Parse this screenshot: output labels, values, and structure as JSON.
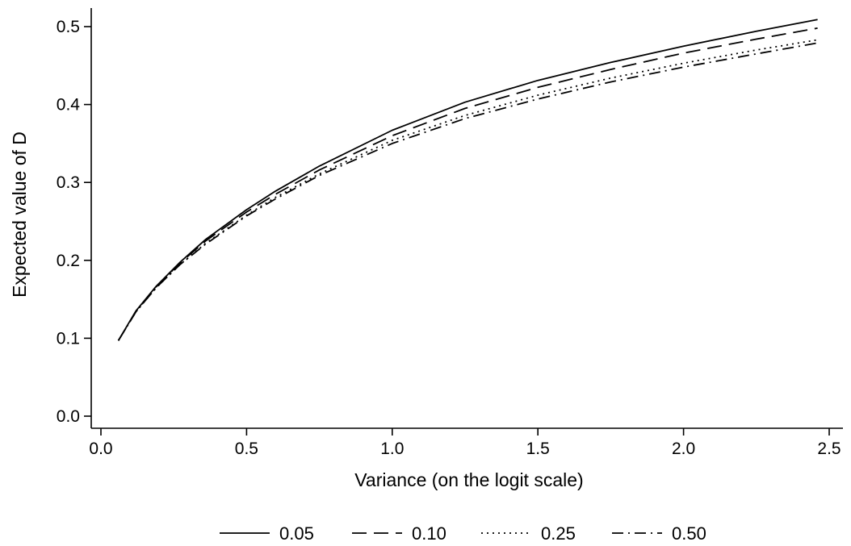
{
  "chart_data": {
    "type": "line",
    "title": "",
    "xlabel": "Variance (on the logit scale)",
    "ylabel": "Expected value of D",
    "xlim": [
      0.0,
      2.5
    ],
    "ylim": [
      0.0,
      0.5
    ],
    "xticks": [
      0.0,
      0.5,
      1.0,
      1.5,
      2.0,
      2.5
    ],
    "xtick_labels": [
      "0.0",
      "0.5",
      "1.0",
      "1.5",
      "2.0",
      "2.5"
    ],
    "yticks": [
      0.0,
      0.1,
      0.2,
      0.3,
      0.4,
      0.5
    ],
    "ytick_labels": [
      "0.0",
      "0.1",
      "0.2",
      "0.3",
      "0.4",
      "0.5"
    ],
    "grid": false,
    "legend_position": "bottom",
    "x": [
      0.06,
      0.12,
      0.19,
      0.27,
      0.36,
      0.5,
      0.6,
      0.75,
      1.0,
      1.25,
      1.5,
      1.75,
      2.0,
      2.25,
      2.46
    ],
    "series": [
      {
        "name": "0.05",
        "dash": "solid",
        "values": [
          0.097,
          0.135,
          0.167,
          0.197,
          0.227,
          0.265,
          0.289,
          0.321,
          0.367,
          0.403,
          0.431,
          0.454,
          0.475,
          0.494,
          0.509
        ]
      },
      {
        "name": "0.10",
        "dash": "dashed",
        "values": [
          0.097,
          0.134,
          0.166,
          0.196,
          0.225,
          0.262,
          0.285,
          0.316,
          0.36,
          0.395,
          0.422,
          0.445,
          0.466,
          0.484,
          0.498
        ]
      },
      {
        "name": "0.25",
        "dash": "dotted",
        "values": [
          0.097,
          0.134,
          0.165,
          0.194,
          0.222,
          0.258,
          0.281,
          0.311,
          0.354,
          0.386,
          0.412,
          0.434,
          0.453,
          0.47,
          0.483
        ]
      },
      {
        "name": "0.50",
        "dash": "dash-dot",
        "values": [
          0.097,
          0.134,
          0.165,
          0.194,
          0.221,
          0.257,
          0.279,
          0.309,
          0.35,
          0.382,
          0.407,
          0.429,
          0.448,
          0.465,
          0.479
        ]
      }
    ]
  }
}
